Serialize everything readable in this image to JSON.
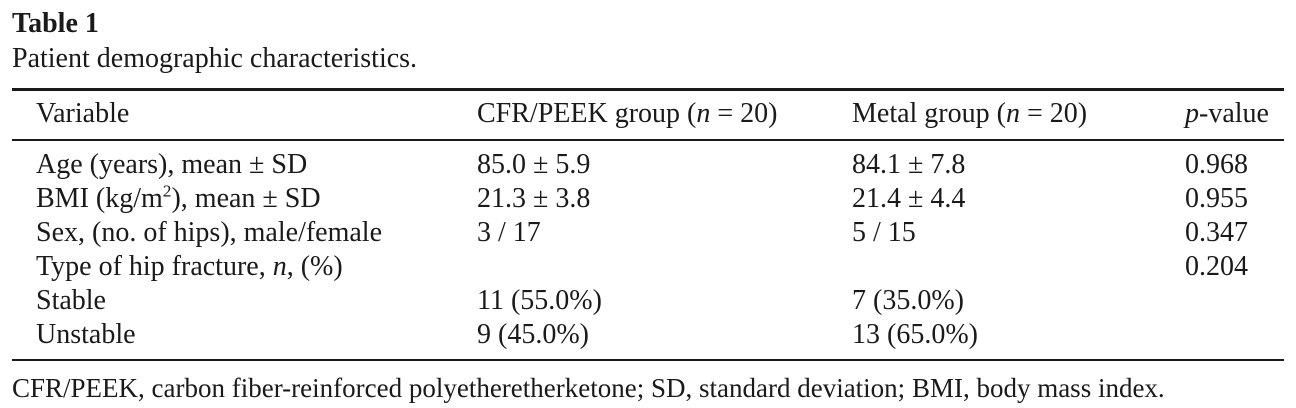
{
  "colors": {
    "text": "#1a1a1a",
    "background": "#ffffff",
    "rule": "#1a1a1a"
  },
  "table": {
    "label": "Table 1",
    "caption": "Patient demographic characteristics.",
    "header": {
      "variable": "Variable",
      "cfr": {
        "prefix": "CFR/PEEK group (",
        "n": "n",
        "suffix": " = 20)"
      },
      "metal": {
        "prefix": "Metal group (",
        "n": "n",
        "suffix": " = 20)"
      },
      "p": {
        "italic": "p",
        "suffix": "-value"
      }
    },
    "rows": {
      "age": {
        "label": "Age (years), mean ± SD",
        "cfr": "85.0 ± 5.9",
        "metal": "84.1 ± 7.8",
        "p": "0.968"
      },
      "bmi": {
        "label_prefix": "BMI (kg/m",
        "label_sup": "2",
        "label_suffix": "), mean ± SD",
        "cfr": "21.3 ± 3.8",
        "metal": "21.4 ± 4.4",
        "p": "0.955"
      },
      "sex": {
        "label": "Sex, (no. of hips), male/female",
        "cfr": "3 / 17",
        "metal": "5 / 15",
        "p": "0.347"
      },
      "fracture_type": {
        "label_prefix": "Type of hip fracture, ",
        "label_italic": "n",
        "label_suffix": ", (%)",
        "cfr": "",
        "metal": "",
        "p": "0.204"
      },
      "stable": {
        "label": "Stable",
        "cfr": "11 (55.0%)",
        "metal": "7 (35.0%)",
        "p": ""
      },
      "unstable": {
        "label": "Unstable",
        "cfr": "9 (45.0%)",
        "metal": "13 (65.0%)",
        "p": ""
      }
    },
    "footnote": "CFR/PEEK, carbon fiber-reinforced polyetheretherketone; SD, standard deviation; BMI, body mass index."
  }
}
